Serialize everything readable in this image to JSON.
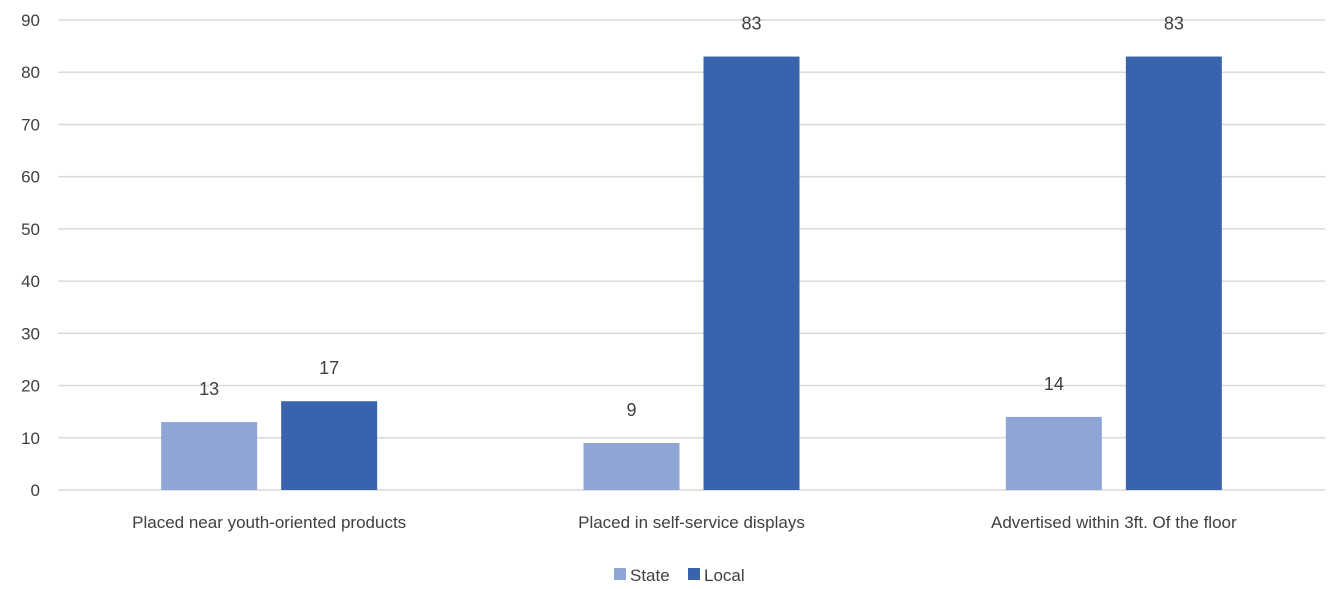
{
  "chart_data": {
    "type": "bar",
    "title": "",
    "xlabel": "",
    "ylabel": "",
    "categories": [
      "Placed near youth-oriented products",
      "Placed in self-service displays",
      "Advertised within 3ft. Of the floor"
    ],
    "series": [
      {
        "name": "State",
        "color": "#8fa5d6",
        "values": [
          13,
          9,
          14
        ]
      },
      {
        "name": "Local",
        "color": "#3a63ad",
        "values": [
          17,
          83,
          83
        ]
      }
    ],
    "ylim": [
      0,
      90
    ],
    "yticks": [
      0,
      10,
      20,
      30,
      40,
      50,
      60,
      70,
      80,
      90
    ],
    "grid": true,
    "data_labels": true,
    "legend_position": "bottom"
  }
}
